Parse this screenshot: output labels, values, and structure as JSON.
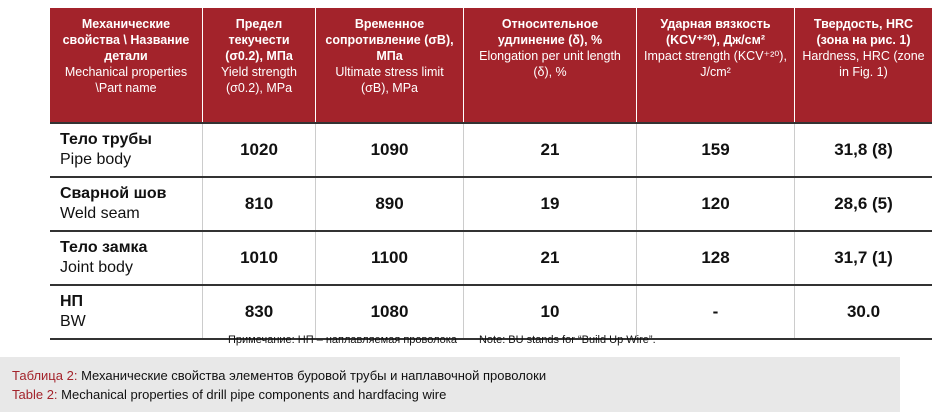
{
  "table": {
    "header": [
      {
        "ru": "Механические свойства \\ Название детали",
        "en": "Mechanical properties \\Part name"
      },
      {
        "ru": "Предел текучести (σ0.2), МПа",
        "en": "Yield strength (σ0.2), MPa"
      },
      {
        "ru": "Временное сопротивление (σB), МПа",
        "en": "Ultimate stress limit (σB), MPa"
      },
      {
        "ru": "Относительное удлинение (δ), %",
        "en": "Elongation per unit length (δ), %"
      },
      {
        "ru": "Ударная вязкость (KCV⁺²⁰), Дж/см²",
        "en": "Impact strength (KCV⁺²⁰), J/cm²"
      },
      {
        "ru": "Твердость, HRC (зона на рис. 1)",
        "en": "Hardness, HRC (zone in Fig. 1)"
      }
    ],
    "rows": [
      {
        "ru": "Тело трубы",
        "en": "Pipe body",
        "values": [
          "1020",
          "1090",
          "21",
          "159",
          "31,8 (8)"
        ]
      },
      {
        "ru": "Сварной шов",
        "en": "Weld seam",
        "values": [
          "810",
          "890",
          "19",
          "120",
          "28,6 (5)"
        ]
      },
      {
        "ru": "Тело замка",
        "en": "Joint body",
        "values": [
          "1010",
          "1100",
          "21",
          "128",
          "31,7 (1)"
        ]
      },
      {
        "ru": "НП",
        "en": "BW",
        "values": [
          "830",
          "1080",
          "10",
          "-",
          "30.0"
        ]
      }
    ]
  },
  "note": {
    "ru": "Примечание: НП – наплавляемая проволока",
    "en": "Note: BU stands for “Build Up Wire”."
  },
  "caption": [
    {
      "label": "Таблица 2:",
      "text": "Механические свойства элементов буровой трубы и наплавочной проволоки"
    },
    {
      "label": "Table 2:",
      "text": "Mechanical properties of drill pipe components and hardfacing wire"
    }
  ]
}
